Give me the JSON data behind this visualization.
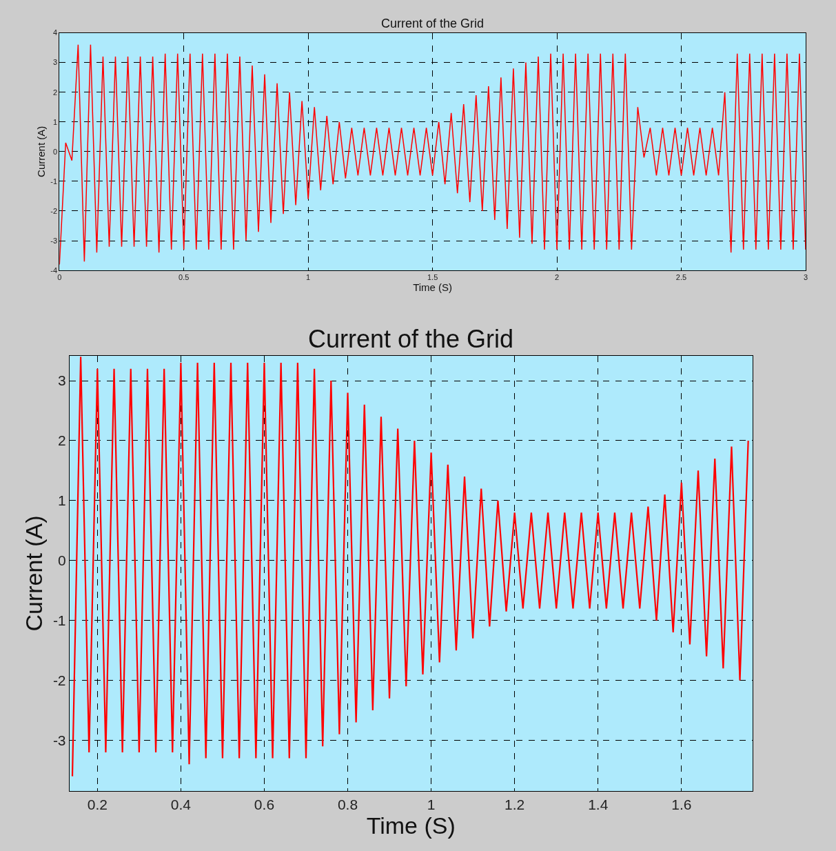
{
  "chart_data": [
    {
      "type": "line",
      "title": "Current of the Grid",
      "xlabel": "Time (S)",
      "ylabel": "Current (A)",
      "x": [
        0,
        0.025,
        0.05,
        0.075,
        0.1,
        0.125,
        0.15,
        0.175,
        0.2,
        0.225,
        0.25,
        0.275,
        0.3,
        0.325,
        0.35,
        0.375,
        0.4,
        0.425,
        0.45,
        0.475,
        0.5,
        0.525,
        0.55,
        0.575,
        0.6,
        0.625,
        0.65,
        0.675,
        0.7,
        0.725,
        0.75,
        0.775,
        0.8,
        0.825,
        0.85,
        0.875,
        0.9,
        0.925,
        0.95,
        0.975,
        1.0,
        1.025,
        1.05,
        1.075,
        1.1,
        1.125,
        1.15,
        1.175,
        1.2,
        1.225,
        1.25,
        1.275,
        1.3,
        1.325,
        1.35,
        1.375,
        1.4,
        1.425,
        1.45,
        1.475,
        1.5,
        1.525,
        1.55,
        1.575,
        1.6,
        1.625,
        1.65,
        1.675,
        1.7,
        1.725,
        1.75,
        1.775,
        1.8,
        1.825,
        1.85,
        1.875,
        1.9,
        1.925,
        1.95,
        1.975,
        2.0,
        2.025,
        2.05,
        2.075,
        2.1,
        2.125,
        2.15,
        2.175,
        2.2,
        2.225,
        2.25,
        2.275,
        2.3,
        2.325,
        2.35,
        2.375,
        2.4,
        2.425,
        2.45,
        2.475,
        2.5,
        2.525,
        2.55,
        2.575,
        2.6,
        2.625,
        2.65,
        2.675,
        2.7,
        2.725,
        2.75,
        2.775,
        2.8,
        2.825,
        2.85,
        2.875,
        2.9,
        2.925,
        2.95,
        2.975,
        3.0
      ],
      "series": [
        {
          "color": "#ff0000",
          "values": [
            -3.8,
            0.3,
            -0.3,
            3.6,
            -3.7,
            3.6,
            -3.4,
            3.2,
            -3.2,
            3.2,
            -3.2,
            3.2,
            -3.2,
            3.2,
            -3.2,
            3.2,
            -3.4,
            3.3,
            -3.3,
            3.3,
            -3.3,
            3.3,
            -3.3,
            3.3,
            -3.3,
            3.3,
            -3.3,
            3.3,
            -3.3,
            3.2,
            -3.0,
            2.9,
            -2.7,
            2.6,
            -2.4,
            2.3,
            -2.1,
            2.0,
            -1.8,
            1.7,
            -1.6,
            1.5,
            -1.3,
            1.2,
            -1.1,
            1.0,
            -0.9,
            0.8,
            -0.8,
            0.8,
            -0.8,
            0.8,
            -0.8,
            0.8,
            -0.8,
            0.8,
            -0.8,
            0.8,
            -0.8,
            0.8,
            -0.8,
            1.0,
            -1.1,
            1.3,
            -1.4,
            1.6,
            -1.7,
            1.9,
            -2.0,
            2.2,
            -2.3,
            2.5,
            -2.6,
            2.8,
            -2.9,
            3.0,
            -3.1,
            3.2,
            -3.3,
            3.3,
            -3.3,
            3.3,
            -3.3,
            3.3,
            -3.3,
            3.3,
            -3.3,
            3.3,
            -3.3,
            3.3,
            -3.3,
            3.3,
            -3.3,
            1.5,
            -0.2,
            0.8,
            -0.8,
            0.8,
            -0.8,
            0.8,
            -0.8,
            0.8,
            -0.8,
            0.8,
            -0.8,
            0.8,
            -0.8,
            2.0,
            -3.4,
            3.3,
            -3.3,
            3.3,
            -3.3,
            3.3,
            -3.3,
            3.3,
            -3.3,
            3.3,
            -3.3,
            3.3,
            -3.3
          ]
        }
      ],
      "xlim": [
        0,
        3
      ],
      "ylim": [
        -4,
        4
      ],
      "xticks": [
        0,
        0.5,
        1,
        1.5,
        2,
        2.5,
        3
      ],
      "yticks": [
        -4,
        -3,
        -2,
        -1,
        0,
        1,
        2,
        3,
        4
      ],
      "grid": true
    },
    {
      "type": "line",
      "title": "Current of the Grid",
      "xlabel": "Time (S)",
      "ylabel": "Current (A)",
      "x": [
        0.14,
        0.16,
        0.18,
        0.2,
        0.22,
        0.24,
        0.26,
        0.28,
        0.3,
        0.32,
        0.34,
        0.36,
        0.38,
        0.4,
        0.42,
        0.44,
        0.46,
        0.48,
        0.5,
        0.52,
        0.54,
        0.56,
        0.58,
        0.6,
        0.62,
        0.64,
        0.66,
        0.68,
        0.7,
        0.72,
        0.74,
        0.76,
        0.78,
        0.8,
        0.82,
        0.84,
        0.86,
        0.88,
        0.9,
        0.92,
        0.94,
        0.96,
        0.98,
        1.0,
        1.02,
        1.04,
        1.06,
        1.08,
        1.1,
        1.12,
        1.14,
        1.16,
        1.18,
        1.2,
        1.22,
        1.24,
        1.26,
        1.28,
        1.3,
        1.32,
        1.34,
        1.36,
        1.38,
        1.4,
        1.42,
        1.44,
        1.46,
        1.48,
        1.5,
        1.52,
        1.54,
        1.56,
        1.58,
        1.6,
        1.62,
        1.64,
        1.66,
        1.68,
        1.7,
        1.72,
        1.74,
        1.76
      ],
      "series": [
        {
          "color": "#ff0000",
          "values": [
            -3.6,
            3.4,
            -3.2,
            3.2,
            -3.2,
            3.2,
            -3.2,
            3.2,
            -3.2,
            3.2,
            -3.2,
            3.2,
            -3.2,
            3.3,
            -3.4,
            3.3,
            -3.3,
            3.3,
            -3.3,
            3.3,
            -3.3,
            3.3,
            -3.3,
            3.3,
            -3.3,
            3.3,
            -3.3,
            3.3,
            -3.3,
            3.2,
            -3.1,
            3.0,
            -2.9,
            2.8,
            -2.7,
            2.6,
            -2.5,
            2.4,
            -2.3,
            2.2,
            -2.1,
            2.0,
            -1.9,
            1.8,
            -1.7,
            1.6,
            -1.5,
            1.4,
            -1.3,
            1.2,
            -1.1,
            1.0,
            -0.85,
            0.8,
            -0.8,
            0.8,
            -0.8,
            0.8,
            -0.8,
            0.8,
            -0.8,
            0.8,
            -0.8,
            0.8,
            -0.8,
            0.8,
            -0.8,
            0.8,
            -0.8,
            0.9,
            -1.0,
            1.1,
            -1.2,
            1.3,
            -1.4,
            1.5,
            -1.6,
            1.7,
            -1.8,
            1.9,
            -2.0,
            2.0
          ]
        }
      ],
      "xlim": [
        0.133,
        1.77
      ],
      "ylim": [
        -3.85,
        3.42
      ],
      "xticks": [
        0.2,
        0.4,
        0.6,
        0.8,
        1,
        1.2,
        1.4,
        1.6
      ],
      "yticks": [
        -3,
        -2,
        -1,
        0,
        1,
        2,
        3
      ],
      "grid": true
    }
  ]
}
